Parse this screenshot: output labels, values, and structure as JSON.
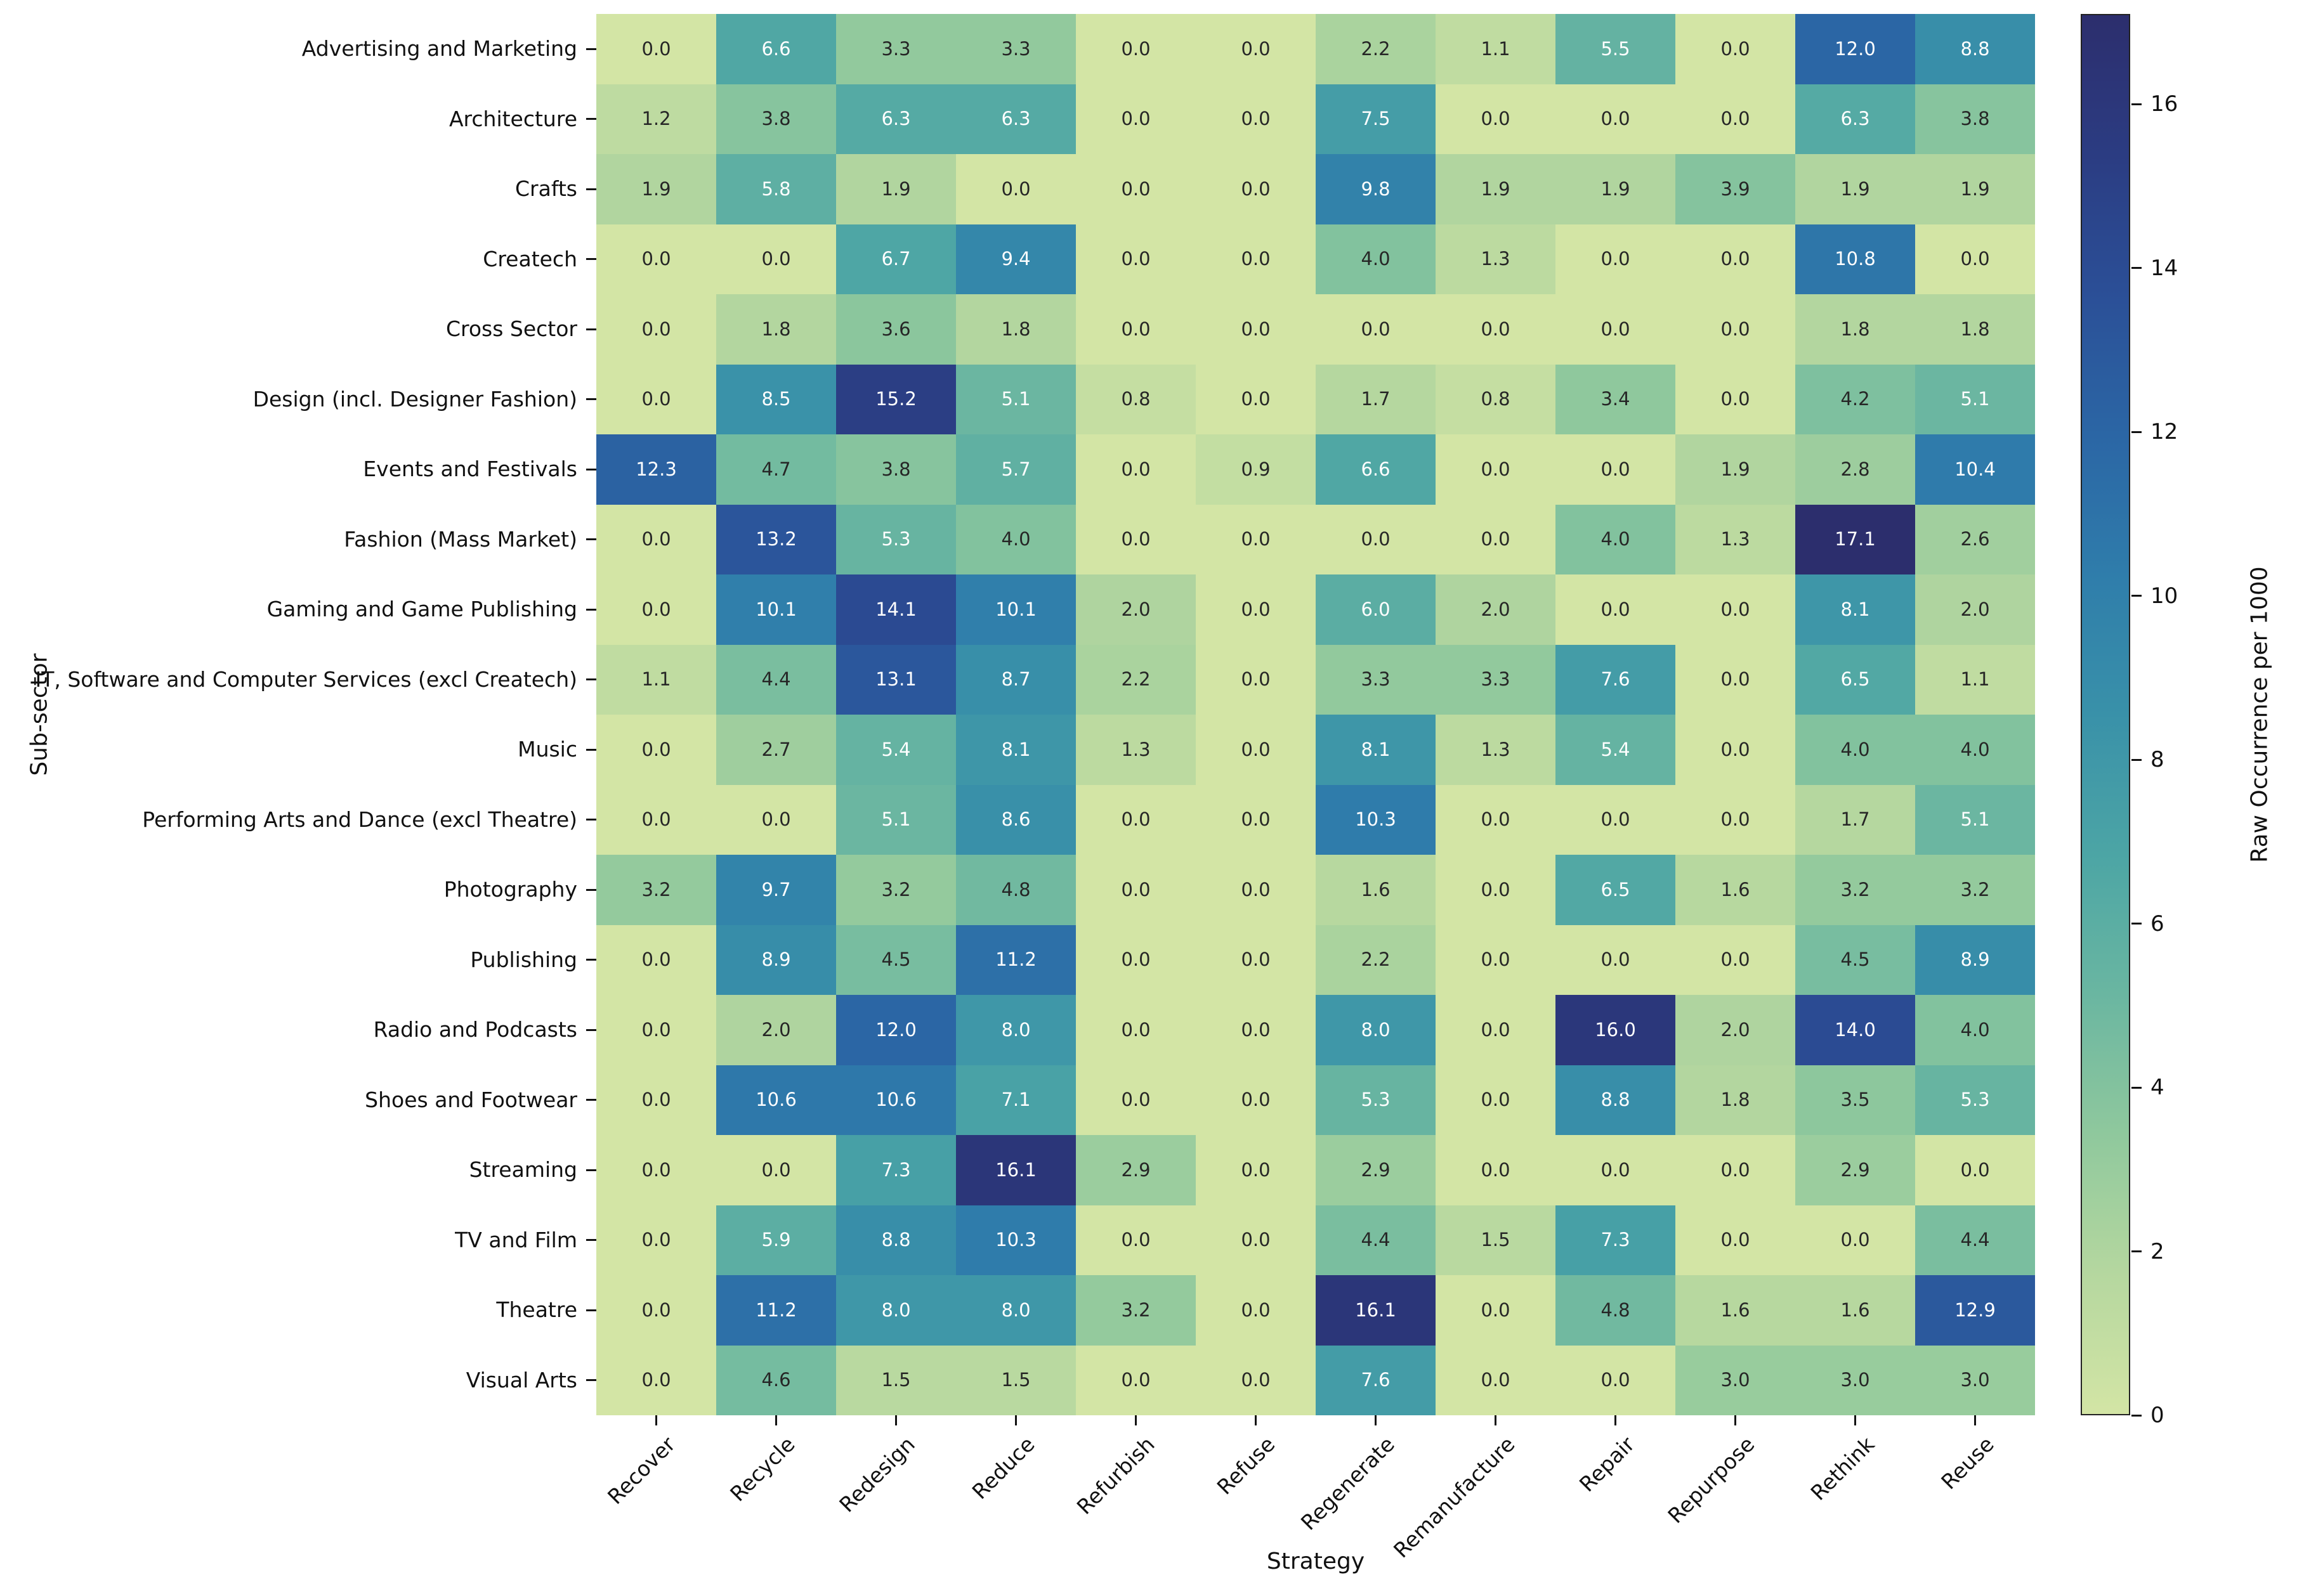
{
  "figure": {
    "background": "#ffffff",
    "text_color": "#111111",
    "annot_dark_color": "#262626",
    "annot_light_color": "#ffffff"
  },
  "chart_data": {
    "type": "heatmap",
    "title": "",
    "xlabel": "Strategy",
    "ylabel": "Sub-sector",
    "colorbar_label": "Raw Occurrence per 1000",
    "vmin": 0,
    "vmax": 17.1,
    "colorbar_ticks": [
      0,
      2,
      4,
      6,
      8,
      10,
      12,
      14,
      16
    ],
    "annot_white_text_threshold": 5.0,
    "colormap_stops": [
      [
        0.0,
        "#d3e5a5"
      ],
      [
        0.1,
        "#b5d79f"
      ],
      [
        0.2,
        "#8fc89d"
      ],
      [
        0.3,
        "#6ab6a1"
      ],
      [
        0.4,
        "#4ca5a5"
      ],
      [
        0.5,
        "#3991a9"
      ],
      [
        0.6,
        "#2f7dab"
      ],
      [
        0.7,
        "#2b66a5"
      ],
      [
        0.8,
        "#2b4f97"
      ],
      [
        0.9,
        "#2b3c82"
      ],
      [
        1.0,
        "#2c2e6d"
      ]
    ],
    "columns": [
      "Recover",
      "Recycle",
      "Redesign",
      "Reduce",
      "Refurbish",
      "Refuse",
      "Regenerate",
      "Remanufacture",
      "Repair",
      "Repurpose",
      "Rethink",
      "Reuse"
    ],
    "rows": [
      "Advertising and Marketing",
      "Architecture",
      "Crafts",
      "Createch",
      "Cross Sector",
      "Design (incl. Designer Fashion)",
      "Events and Festivals",
      "Fashion (Mass Market)",
      "Gaming and Game Publishing",
      "IT, Software and Computer Services (excl Createch)",
      "Music",
      "Performing Arts and Dance (excl Theatre)",
      "Photography",
      "Publishing",
      "Radio and Podcasts",
      "Shoes and Footwear",
      "Streaming",
      "TV and Film",
      "Theatre",
      "Visual Arts"
    ],
    "values": [
      [
        0.0,
        6.6,
        3.3,
        3.3,
        0.0,
        0.0,
        2.2,
        1.1,
        5.5,
        0.0,
        12.0,
        8.8
      ],
      [
        1.2,
        3.8,
        6.3,
        6.3,
        0.0,
        0.0,
        7.5,
        0.0,
        0.0,
        0.0,
        6.3,
        3.8
      ],
      [
        1.9,
        5.8,
        1.9,
        0.0,
        0.0,
        0.0,
        9.8,
        1.9,
        1.9,
        3.9,
        1.9,
        1.9
      ],
      [
        0.0,
        0.0,
        6.7,
        9.4,
        0.0,
        0.0,
        4.0,
        1.3,
        0.0,
        0.0,
        10.8,
        0.0
      ],
      [
        0.0,
        1.8,
        3.6,
        1.8,
        0.0,
        0.0,
        0.0,
        0.0,
        0.0,
        0.0,
        1.8,
        1.8
      ],
      [
        0.0,
        8.5,
        15.2,
        5.1,
        0.8,
        0.0,
        1.7,
        0.8,
        3.4,
        0.0,
        4.2,
        5.1
      ],
      [
        12.3,
        4.7,
        3.8,
        5.7,
        0.0,
        0.9,
        6.6,
        0.0,
        0.0,
        1.9,
        2.8,
        10.4
      ],
      [
        0.0,
        13.2,
        5.3,
        4.0,
        0.0,
        0.0,
        0.0,
        0.0,
        4.0,
        1.3,
        17.1,
        2.6
      ],
      [
        0.0,
        10.1,
        14.1,
        10.1,
        2.0,
        0.0,
        6.0,
        2.0,
        0.0,
        0.0,
        8.1,
        2.0
      ],
      [
        1.1,
        4.4,
        13.1,
        8.7,
        2.2,
        0.0,
        3.3,
        3.3,
        7.6,
        0.0,
        6.5,
        1.1
      ],
      [
        0.0,
        2.7,
        5.4,
        8.1,
        1.3,
        0.0,
        8.1,
        1.3,
        5.4,
        0.0,
        4.0,
        4.0
      ],
      [
        0.0,
        0.0,
        5.1,
        8.6,
        0.0,
        0.0,
        10.3,
        0.0,
        0.0,
        0.0,
        1.7,
        5.1
      ],
      [
        3.2,
        9.7,
        3.2,
        4.8,
        0.0,
        0.0,
        1.6,
        0.0,
        6.5,
        1.6,
        3.2,
        3.2
      ],
      [
        0.0,
        8.9,
        4.5,
        11.2,
        0.0,
        0.0,
        2.2,
        0.0,
        0.0,
        0.0,
        4.5,
        8.9
      ],
      [
        0.0,
        2.0,
        12.0,
        8.0,
        0.0,
        0.0,
        8.0,
        0.0,
        16.0,
        2.0,
        14.0,
        4.0
      ],
      [
        0.0,
        10.6,
        10.6,
        7.1,
        0.0,
        0.0,
        5.3,
        0.0,
        8.8,
        1.8,
        3.5,
        5.3
      ],
      [
        0.0,
        0.0,
        7.3,
        16.1,
        2.9,
        0.0,
        2.9,
        0.0,
        0.0,
        0.0,
        2.9,
        0.0
      ],
      [
        0.0,
        5.9,
        8.8,
        10.3,
        0.0,
        0.0,
        4.4,
        1.5,
        7.3,
        0.0,
        0.0,
        4.4
      ],
      [
        0.0,
        11.2,
        8.0,
        8.0,
        3.2,
        0.0,
        16.1,
        0.0,
        4.8,
        1.6,
        1.6,
        12.9
      ],
      [
        0.0,
        4.6,
        1.5,
        1.5,
        0.0,
        0.0,
        7.6,
        0.0,
        0.0,
        3.0,
        3.0,
        3.0
      ]
    ]
  }
}
